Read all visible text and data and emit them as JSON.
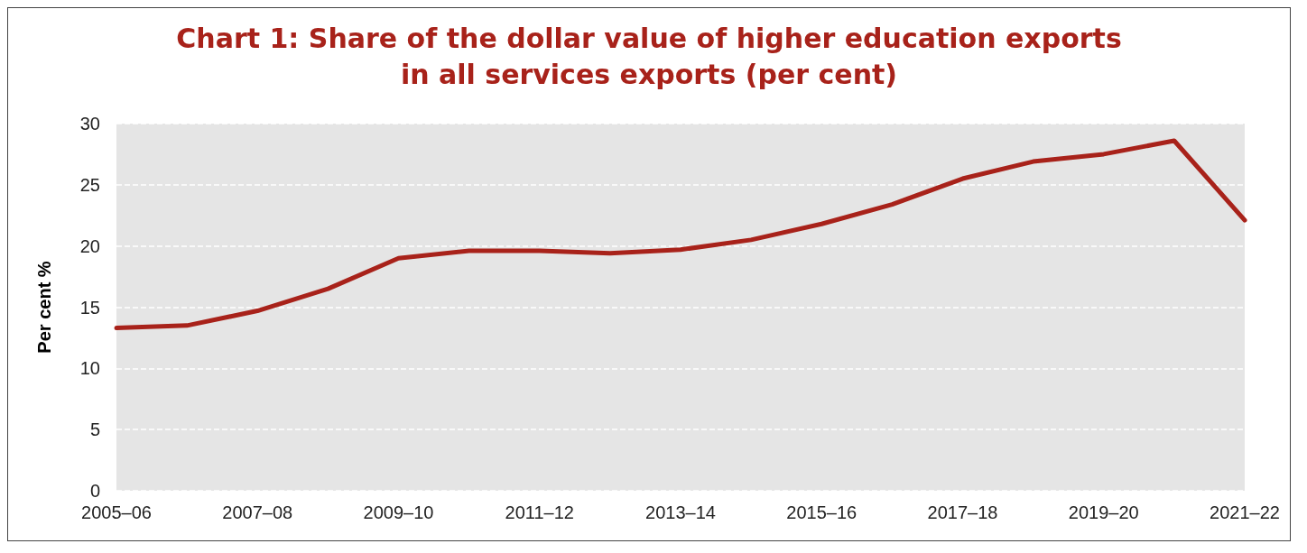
{
  "chart_data": {
    "type": "line",
    "title": "Chart 1: Share of the dollar value of higher education exports\nin all services exports (per cent)",
    "ylabel": "Per cent %",
    "categories": [
      "2005–06",
      null,
      "2007–08",
      null,
      "2009–10",
      null,
      "2011–12",
      null,
      "2013–14",
      null,
      "2015–16",
      null,
      "2017–18",
      null,
      "2019–20",
      null,
      "2021–22"
    ],
    "series": [
      {
        "color": "#a8221a",
        "values": [
          13.3,
          13.5,
          14.7,
          16.5,
          19.0,
          19.6,
          19.6,
          19.4,
          19.7,
          20.5,
          21.8,
          23.4,
          25.5,
          26.9,
          27.5,
          28.6,
          22.1
        ]
      }
    ],
    "ylim": [
      0,
      30
    ],
    "yticks": [
      0,
      5,
      10,
      15,
      20,
      25,
      30
    ],
    "grid": "y",
    "marker": "none",
    "line_style": "solid"
  }
}
